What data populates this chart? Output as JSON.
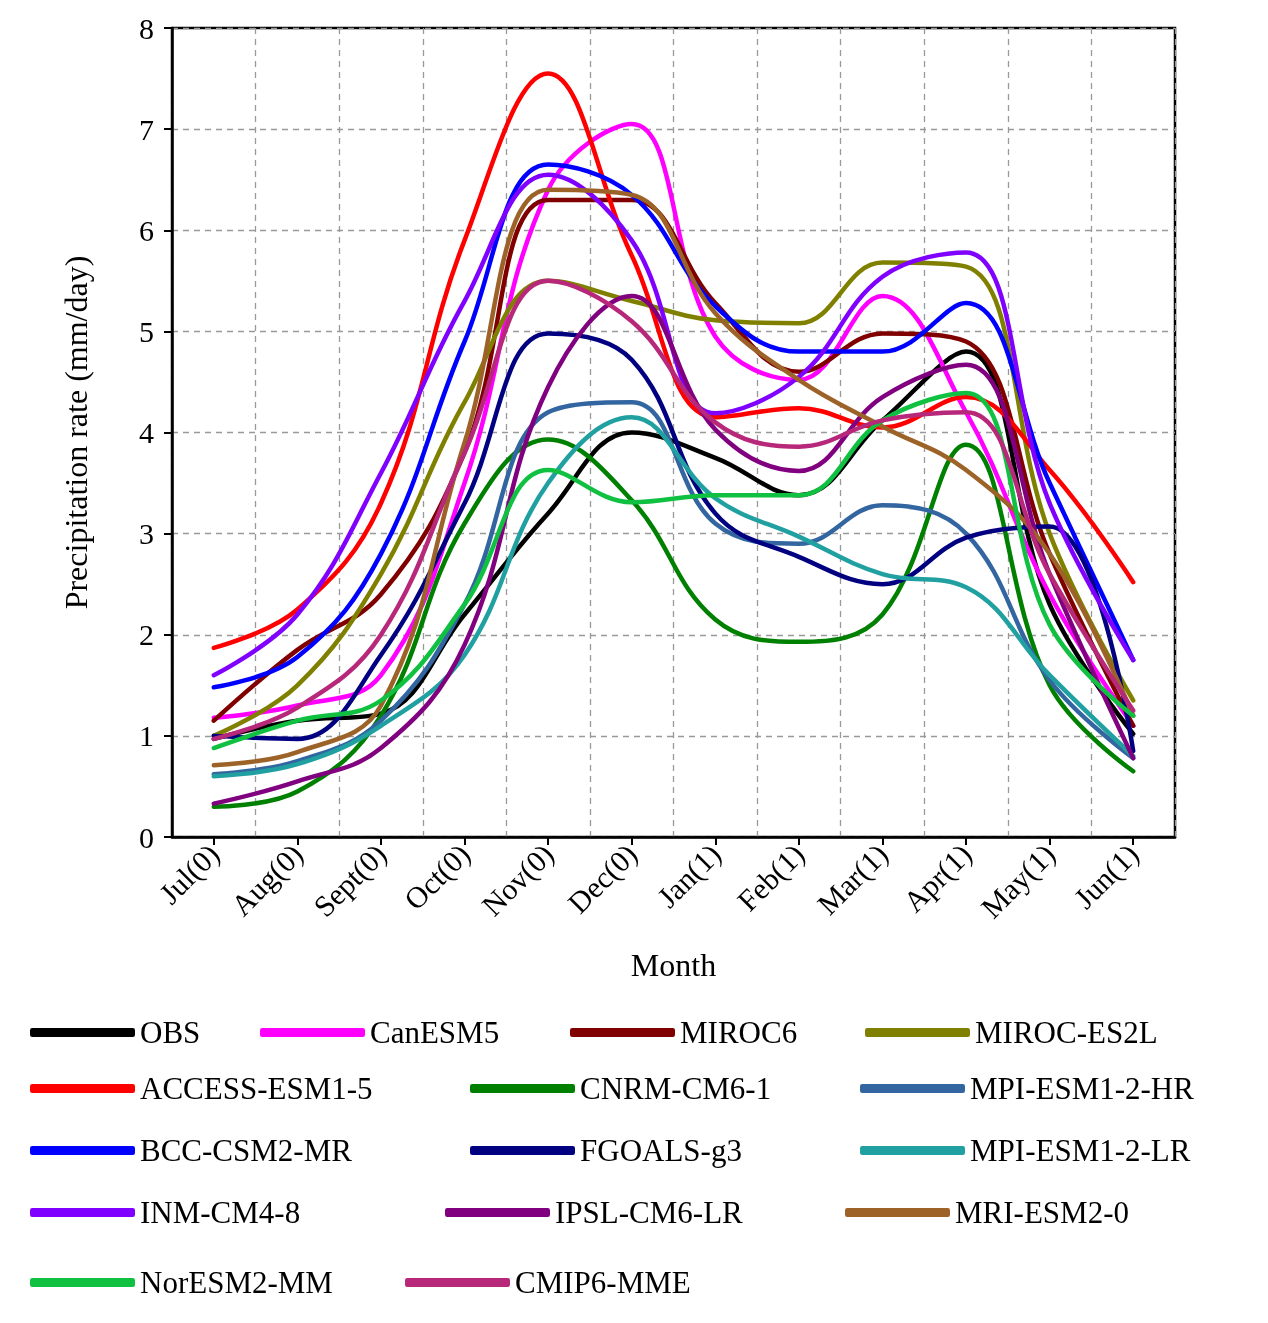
{
  "chart_data": {
    "type": "line",
    "xlabel": "Month",
    "ylabel": "Precipitation rate (mm/day)",
    "categories": [
      "Jul(0)",
      "Aug(0)",
      "Sept(0)",
      "Oct(0)",
      "Nov(0)",
      "Dec(0)",
      "Jan(1)",
      "Feb(1)",
      "Mar(1)",
      "Apr(1)",
      "May(1)",
      "Jun(1)"
    ],
    "ylim": [
      0,
      8
    ],
    "yticks": [
      0,
      1,
      2,
      3,
      4,
      5,
      6,
      7,
      8
    ],
    "grid": true,
    "legend": "bottom",
    "marker": "none",
    "line_style": "solid",
    "series": [
      {
        "name": "OBS",
        "color": "#000000",
        "values": [
          0.97,
          1.15,
          1.22,
          2.2,
          3.2,
          4.0,
          3.75,
          3.38,
          4.12,
          4.8,
          2.3,
          1.02
        ]
      },
      {
        "name": "CanESM5",
        "color": "#ff00ff",
        "values": [
          1.18,
          1.3,
          1.6,
          3.5,
          6.4,
          7.05,
          4.95,
          4.52,
          5.35,
          4.2,
          2.4,
          1.1
        ]
      },
      {
        "name": "MIROC6",
        "color": "#800000",
        "values": [
          1.15,
          1.85,
          2.4,
          3.8,
          6.3,
          6.3,
          5.28,
          4.6,
          4.98,
          4.9,
          2.8,
          1.1
        ]
      },
      {
        "name": "MIROC-ES2L",
        "color": "#808000",
        "values": [
          1.0,
          1.5,
          2.6,
          4.3,
          5.5,
          5.3,
          5.11,
          5.08,
          5.68,
          5.64,
          3.0,
          1.35
        ]
      },
      {
        "name": "ACCESS-ESM1-5",
        "color": "#ff0000",
        "values": [
          1.87,
          2.25,
          3.3,
          5.9,
          7.55,
          5.75,
          4.15,
          4.24,
          4.05,
          4.35,
          3.63,
          2.52
        ]
      },
      {
        "name": "CNRM-CM6-1",
        "color": "#008000",
        "values": [
          0.3,
          0.45,
          1.2,
          3.1,
          3.93,
          3.33,
          2.15,
          1.93,
          2.2,
          3.88,
          1.5,
          0.65
        ]
      },
      {
        "name": "MPI-ESM1-2-HR",
        "color": "#3366a0",
        "values": [
          0.62,
          0.75,
          1.15,
          2.3,
          4.2,
          4.3,
          3.1,
          2.9,
          3.28,
          3.0,
          1.55,
          0.78
        ]
      },
      {
        "name": "BCC-CSM2-MR",
        "color": "#0000ff",
        "values": [
          1.48,
          1.78,
          2.8,
          4.9,
          6.65,
          6.35,
          5.25,
          4.8,
          4.8,
          5.28,
          3.5,
          1.75
        ]
      },
      {
        "name": "FGOALS-g3",
        "color": "#000080",
        "values": [
          1.0,
          0.97,
          1.8,
          3.3,
          4.98,
          4.72,
          3.2,
          2.77,
          2.5,
          2.96,
          3.07,
          0.85
        ]
      },
      {
        "name": "MPI-ESM1-2-LR",
        "color": "#20a0a0",
        "values": [
          0.6,
          0.72,
          1.1,
          1.8,
          3.5,
          4.15,
          3.35,
          2.97,
          2.6,
          2.47,
          1.6,
          0.8
        ]
      },
      {
        "name": "INM-CM4-8",
        "color": "#8000ff",
        "values": [
          1.6,
          2.2,
          3.6,
          5.3,
          6.55,
          5.9,
          4.19,
          4.55,
          5.54,
          5.78,
          3.3,
          1.75
        ]
      },
      {
        "name": "IPSL-CM6-LR",
        "color": "#800080",
        "values": [
          0.33,
          0.55,
          0.88,
          1.9,
          4.45,
          5.35,
          4.03,
          3.62,
          4.35,
          4.67,
          2.6,
          0.78
        ]
      },
      {
        "name": "MRI-ESM2-0",
        "color": "#9c6228",
        "values": [
          0.71,
          0.84,
          1.3,
          3.9,
          6.4,
          6.35,
          5.18,
          4.52,
          4.06,
          3.63,
          2.8,
          1.2
        ]
      },
      {
        "name": "NorESM2-MM",
        "color": "#10c040",
        "values": [
          0.88,
          1.15,
          1.35,
          2.3,
          3.63,
          3.31,
          3.38,
          3.38,
          4.12,
          4.39,
          2.1,
          1.2
        ]
      },
      {
        "name": "CMIP6-MME",
        "color": "#b8287a",
        "values": [
          0.97,
          1.28,
          2.0,
          3.8,
          5.5,
          5.1,
          4.1,
          3.86,
          4.12,
          4.2,
          2.6,
          1.25
        ]
      }
    ]
  }
}
